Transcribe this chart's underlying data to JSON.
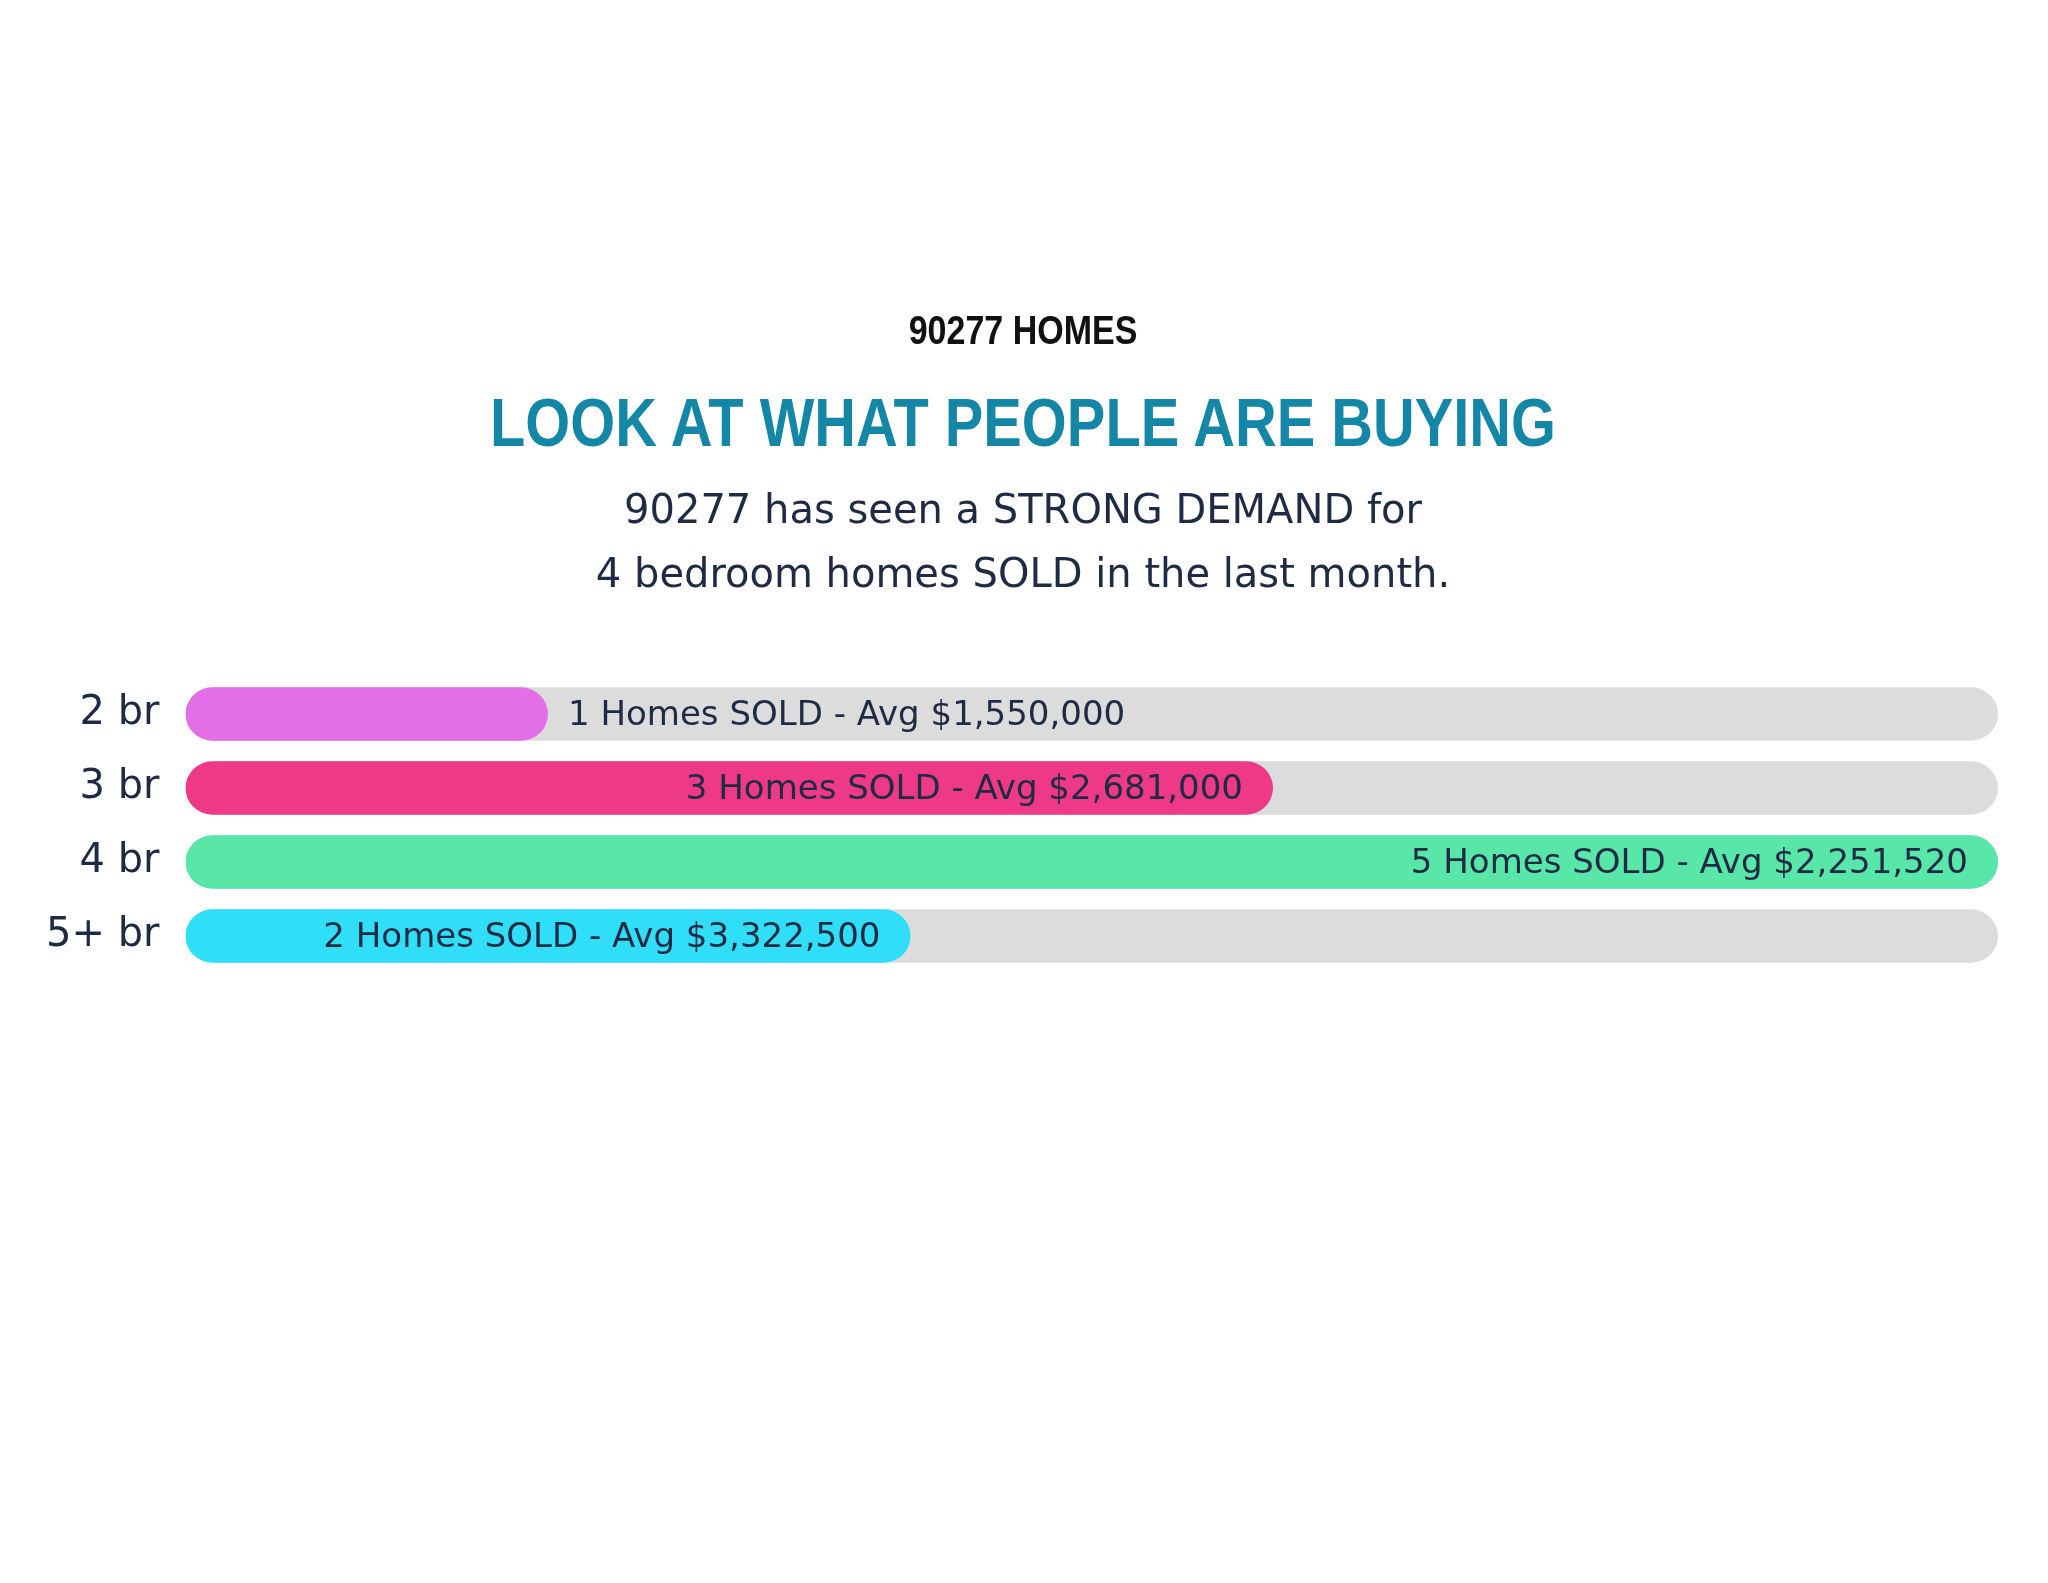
{
  "chart_data": {
    "type": "bar",
    "orientation": "horizontal",
    "title": "90277 HOMES",
    "subtitle": "LOOK AT WHAT PEOPLE ARE BUYING",
    "annotations": [
      "90277 has seen a STRONG DEMAND for\n4 bedroom homes SOLD in the last month."
    ],
    "categories": [
      "2 br",
      "3 br",
      "4 br",
      "5+ br"
    ],
    "values": [
      1,
      3,
      5,
      2
    ],
    "colors": [
      "#e36fe6",
      "#ee3a86",
      "#58e6a9",
      "#31def7"
    ],
    "value_labels": [
      "1 Homes SOLD - Avg $1,550,000",
      "3 Homes SOLD - Avg $2,681,000",
      "5 Homes SOLD - Avg $2,251,520",
      "2 Homes SOLD - Avg $3,322,500"
    ],
    "xlim": [
      0,
      5
    ],
    "tick_labels": "y",
    "grid": false,
    "legend": false
  }
}
